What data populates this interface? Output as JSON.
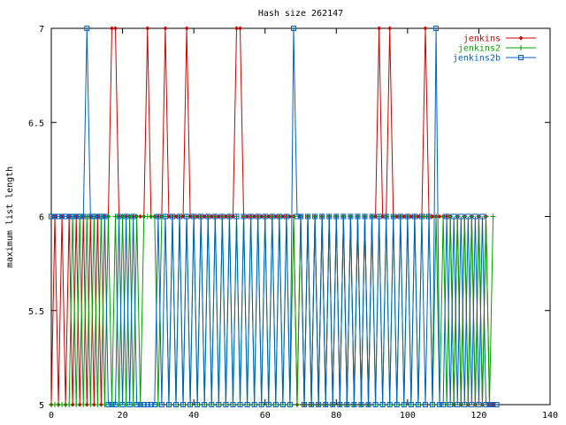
{
  "chart_data": {
    "type": "line",
    "title": "Hash size 262147",
    "xlabel": "",
    "ylabel": "maximum list length",
    "xlim": [
      0,
      140
    ],
    "ylim": [
      5,
      7
    ],
    "xticks": [
      "0",
      "20",
      "40",
      "60",
      "80",
      "100",
      "120",
      "140"
    ],
    "yticks": [
      "5",
      "5.5",
      "6",
      "6.5",
      "7"
    ],
    "grid": false,
    "legend_position": "top-right",
    "series": [
      {
        "name": "jenkins",
        "color": "#cc0000",
        "marker": "diamond",
        "x": [
          0,
          1,
          2,
          3,
          4,
          5,
          6,
          7,
          8,
          9,
          10,
          11,
          12,
          13,
          14,
          15,
          16,
          17,
          18,
          19,
          20,
          21,
          22,
          23,
          24,
          25,
          26,
          27,
          28,
          29,
          30,
          31,
          32,
          33,
          34,
          35,
          36,
          37,
          38,
          39,
          40,
          41,
          42,
          43,
          44,
          45,
          46,
          47,
          48,
          49,
          50,
          51,
          52,
          53,
          54,
          55,
          56,
          57,
          58,
          59,
          60,
          61,
          62,
          63,
          64,
          65,
          66,
          67,
          68,
          69,
          70,
          71,
          72,
          73,
          74,
          75,
          76,
          77,
          78,
          79,
          80,
          81,
          82,
          83,
          84,
          85,
          86,
          87,
          88,
          89,
          90,
          91,
          92,
          93,
          94,
          95,
          96,
          97,
          98,
          99,
          100,
          101,
          102,
          103,
          104,
          105,
          106,
          107,
          108,
          109,
          110,
          111,
          112,
          113,
          114,
          115,
          116,
          117,
          118,
          119,
          120,
          121,
          122,
          123,
          124
        ],
        "y": [
          5,
          6,
          5,
          6,
          5,
          6,
          5,
          6,
          5,
          6,
          5,
          6,
          5,
          6,
          5,
          6,
          6,
          7,
          7,
          6,
          6,
          6,
          6,
          6,
          6,
          6,
          6,
          7,
          6,
          6,
          6,
          6,
          7,
          6,
          6,
          6,
          6,
          6,
          7,
          6,
          6,
          6,
          6,
          6,
          6,
          6,
          6,
          6,
          6,
          6,
          6,
          6,
          7,
          7,
          6,
          6,
          6,
          6,
          6,
          6,
          6,
          6,
          6,
          6,
          6,
          6,
          6,
          6,
          6,
          5,
          6,
          5,
          6,
          5,
          6,
          5,
          6,
          5,
          6,
          5,
          6,
          5,
          6,
          5,
          6,
          5,
          6,
          5,
          6,
          5,
          6,
          6,
          7,
          6,
          6,
          7,
          6,
          6,
          6,
          6,
          6,
          6,
          6,
          6,
          6,
          7,
          6,
          6,
          6,
          6,
          6,
          6,
          6,
          5,
          6,
          5,
          6,
          5,
          6,
          5,
          6,
          5,
          6,
          5,
          5
        ]
      },
      {
        "name": "jenkins2",
        "color": "#00a000",
        "marker": "plus",
        "x": [
          0,
          1,
          2,
          3,
          4,
          5,
          6,
          7,
          8,
          9,
          10,
          11,
          12,
          13,
          14,
          15,
          16,
          17,
          18,
          19,
          20,
          21,
          22,
          23,
          24,
          25,
          26,
          27,
          28,
          29,
          30,
          31,
          32,
          33,
          34,
          35,
          36,
          37,
          38,
          39,
          40,
          41,
          42,
          43,
          44,
          45,
          46,
          47,
          48,
          49,
          50,
          51,
          52,
          53,
          54,
          55,
          56,
          57,
          58,
          59,
          60,
          61,
          62,
          63,
          64,
          65,
          66,
          67,
          68,
          69,
          70,
          71,
          72,
          73,
          74,
          75,
          76,
          77,
          78,
          79,
          80,
          81,
          82,
          83,
          84,
          85,
          86,
          87,
          88,
          89,
          90,
          91,
          92,
          93,
          94,
          95,
          96,
          97,
          98,
          99,
          100,
          101,
          102,
          103,
          104,
          105,
          106,
          107,
          108,
          109,
          110,
          111,
          112,
          113,
          114,
          115,
          116,
          117,
          118,
          119,
          120,
          121,
          122,
          123,
          124
        ],
        "y": [
          5,
          5,
          5,
          5,
          5,
          5,
          6,
          5,
          6,
          5,
          6,
          5,
          6,
          5,
          6,
          5,
          6,
          5,
          6,
          5,
          6,
          5,
          6,
          5,
          6,
          5,
          6,
          6,
          6,
          6,
          5,
          6,
          6,
          5,
          6,
          5,
          6,
          5,
          6,
          5,
          6,
          5,
          6,
          5,
          6,
          5,
          6,
          5,
          6,
          5,
          6,
          5,
          6,
          5,
          6,
          5,
          6,
          5,
          6,
          5,
          6,
          5,
          6,
          5,
          6,
          5,
          6,
          5,
          6,
          5,
          6,
          5,
          6,
          5,
          6,
          5,
          6,
          5,
          6,
          5,
          6,
          5,
          6,
          5,
          6,
          5,
          6,
          5,
          6,
          5,
          6,
          5,
          6,
          5,
          6,
          5,
          6,
          5,
          6,
          5,
          6,
          5,
          6,
          5,
          6,
          6,
          6,
          5,
          6,
          5,
          6,
          5,
          6,
          5,
          6,
          5,
          6,
          5,
          6,
          5,
          6,
          5,
          6,
          5,
          6
        ]
      },
      {
        "name": "jenkins2b",
        "color": "#0060c0",
        "marker": "square",
        "x": [
          0,
          1,
          2,
          3,
          4,
          5,
          6,
          7,
          8,
          9,
          10,
          11,
          12,
          13,
          14,
          15,
          16,
          17,
          18,
          19,
          20,
          21,
          22,
          23,
          24,
          25,
          26,
          27,
          28,
          29,
          30,
          31,
          32,
          33,
          34,
          35,
          36,
          37,
          38,
          39,
          40,
          41,
          42,
          43,
          44,
          45,
          46,
          47,
          48,
          49,
          50,
          51,
          52,
          53,
          54,
          55,
          56,
          57,
          58,
          59,
          60,
          61,
          62,
          63,
          64,
          65,
          66,
          67,
          68,
          69,
          70,
          71,
          72,
          73,
          74,
          75,
          76,
          77,
          78,
          79,
          80,
          81,
          82,
          83,
          84,
          85,
          86,
          87,
          88,
          89,
          90,
          91,
          92,
          93,
          94,
          95,
          96,
          97,
          98,
          99,
          100,
          101,
          102,
          103,
          104,
          105,
          106,
          107,
          108,
          109,
          110,
          111,
          112,
          113,
          114,
          115,
          116,
          117,
          118,
          119,
          120,
          121,
          122,
          123,
          124,
          125
        ],
        "y": [
          6,
          6,
          6,
          6,
          6,
          6,
          6,
          6,
          6,
          6,
          7,
          6,
          6,
          6,
          6,
          6,
          5,
          5,
          5,
          6,
          5,
          6,
          5,
          6,
          5,
          5,
          5,
          5,
          5,
          5,
          6,
          5,
          6,
          5,
          6,
          5,
          6,
          5,
          6,
          5,
          6,
          5,
          6,
          5,
          6,
          5,
          6,
          5,
          6,
          5,
          6,
          5,
          6,
          5,
          6,
          5,
          6,
          5,
          6,
          5,
          6,
          5,
          6,
          5,
          6,
          5,
          6,
          5,
          7,
          6,
          6,
          5,
          6,
          5,
          6,
          5,
          6,
          5,
          6,
          5,
          6,
          5,
          6,
          5,
          6,
          5,
          6,
          5,
          6,
          5,
          6,
          5,
          6,
          5,
          6,
          5,
          6,
          5,
          6,
          5,
          6,
          5,
          6,
          5,
          6,
          5,
          6,
          5,
          7,
          5,
          5,
          6,
          5,
          6,
          5,
          6,
          5,
          6,
          5,
          6,
          5,
          6,
          5,
          5,
          5,
          5
        ]
      }
    ]
  }
}
